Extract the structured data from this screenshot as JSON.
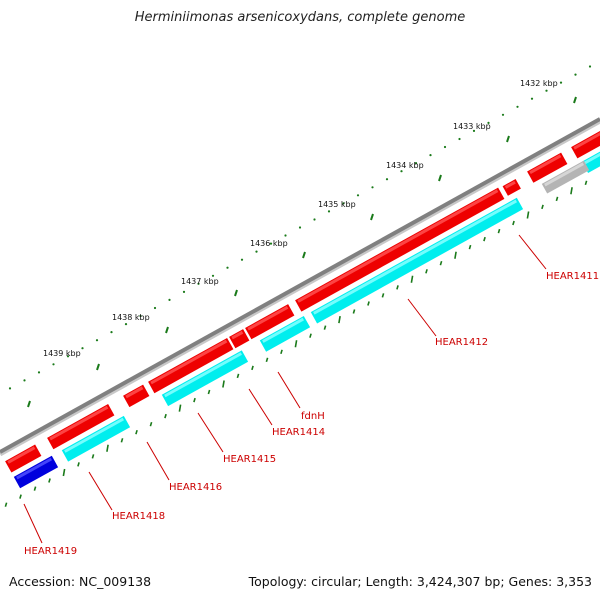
{
  "title": "Herminiimonas arsenicoxydans, complete genome",
  "footer": {
    "accession": "Accession: NC_009138",
    "stats": "Topology: circular; Length: 3,424,307 bp; Genes: 3,353"
  },
  "colors": {
    "backbone": "#808080",
    "cds": "#ee0000",
    "cds_top": "#ff5050",
    "gene": "#00eeee",
    "gene_top": "#88ffff",
    "other_strand": "#0000dd",
    "pseudo": "#b4b4b4",
    "ticks": "#1a7a1a",
    "label": "#cc0000"
  },
  "ruler": {
    "unit": "kbp",
    "labels": [
      "1432 kbp",
      "1433 kbp",
      "1434 kbp",
      "1435 kbp",
      "1436 kbp",
      "1437 kbp",
      "1438 kbp",
      "1439 kbp"
    ]
  },
  "genes": [
    {
      "label": "HEAR1411"
    },
    {
      "label": "HEAR1412"
    },
    {
      "label": "fdnH"
    },
    {
      "label": "HEAR1414"
    },
    {
      "label": "HEAR1415"
    },
    {
      "label": "HEAR1416"
    },
    {
      "label": "HEAR1418"
    },
    {
      "label": "HEAR1419"
    }
  ]
}
